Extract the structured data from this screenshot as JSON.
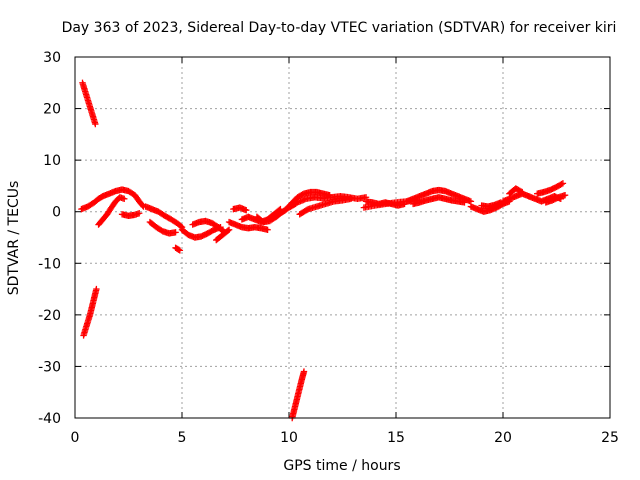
{
  "chart_data": {
    "type": "scatter",
    "title": "Day 363 of 2023, Sidereal Day-to-day VTEC variation (SDTVAR) for receiver kiri",
    "xlabel": "GPS time / hours",
    "ylabel": "SDTVAR / TECUs",
    "xlim": [
      0,
      25
    ],
    "ylim": [
      -40,
      30
    ],
    "xticks": [
      0,
      5,
      10,
      15,
      20,
      25
    ],
    "yticks": [
      -40,
      -30,
      -20,
      -10,
      0,
      10,
      20,
      30
    ],
    "grid": true,
    "marker": "+",
    "marker_color": "#ff0000",
    "series": [
      {
        "name": "SDTVAR",
        "segments": [
          {
            "x": [
              0.35,
              0.5,
              0.65,
              0.8,
              0.95
            ],
            "y": [
              25,
              23,
              21,
              19,
              17
            ]
          },
          {
            "x": [
              0.4,
              0.55,
              0.7,
              0.85,
              1.0
            ],
            "y": [
              -24,
              -22,
              -20,
              -17.5,
              -15
            ]
          },
          {
            "x": [
              10.15,
              10.3,
              10.45,
              10.6,
              10.7
            ],
            "y": [
              -40,
              -37.5,
              -35,
              -32.5,
              -31
            ]
          },
          {
            "x": [
              0.3,
              0.6,
              0.9,
              1.1,
              1.3,
              1.6,
              1.9,
              2.2,
              2.5,
              2.8,
              3.0,
              3.2
            ],
            "y": [
              0.5,
              1.0,
              1.8,
              2.5,
              3.0,
              3.5,
              4.0,
              4.3,
              4.0,
              3.2,
              2.0,
              1.0
            ]
          },
          {
            "x": [
              1.1,
              1.3,
              1.5,
              1.7,
              1.9,
              2.1,
              2.3
            ],
            "y": [
              -2.5,
              -1.5,
              -0.5,
              0.8,
              2.0,
              2.8,
              2.5
            ]
          },
          {
            "x": [
              2.2,
              2.5,
              2.8,
              3.0
            ],
            "y": [
              -0.5,
              -0.8,
              -0.6,
              -0.3
            ]
          },
          {
            "x": [
              3.3,
              3.6,
              3.9,
              4.2,
              4.5,
              4.8,
              5.0
            ],
            "y": [
              1.0,
              0.5,
              0.0,
              -0.8,
              -1.5,
              -2.3,
              -3.0
            ]
          },
          {
            "x": [
              3.5,
              3.8,
              4.1,
              4.4,
              4.7
            ],
            "y": [
              -2.0,
              -3.0,
              -3.8,
              -4.2,
              -4.0
            ]
          },
          {
            "x": [
              4.7,
              4.9
            ],
            "y": [
              -7.0,
              -7.5
            ]
          },
          {
            "x": [
              5.0,
              5.3,
              5.6,
              5.9,
              6.2,
              6.5,
              6.8
            ],
            "y": [
              -3.5,
              -4.5,
              -5.0,
              -4.8,
              -4.2,
              -3.5,
              -3.0
            ]
          },
          {
            "x": [
              5.5,
              5.8,
              6.1,
              6.4,
              6.7,
              7.0
            ],
            "y": [
              -2.5,
              -2.0,
              -1.8,
              -2.2,
              -3.0,
              -4.0
            ]
          },
          {
            "x": [
              6.6,
              6.9,
              7.2
            ],
            "y": [
              -5.5,
              -4.5,
              -3.5
            ]
          },
          {
            "x": [
              7.2,
              7.5,
              7.8,
              8.1,
              8.4,
              8.7,
              9.0
            ],
            "y": [
              -2.0,
              -2.5,
              -3.0,
              -3.2,
              -3.0,
              -3.2,
              -3.5
            ]
          },
          {
            "x": [
              7.4,
              7.7,
              8.0
            ],
            "y": [
              0.5,
              0.8,
              0.3
            ]
          },
          {
            "x": [
              7.8,
              8.1,
              8.4,
              8.7,
              9.0,
              9.3,
              9.6
            ],
            "y": [
              -1.5,
              -1.0,
              -1.5,
              -2.0,
              -1.5,
              -0.5,
              0.5
            ]
          },
          {
            "x": [
              8.5,
              8.8,
              9.1,
              9.4,
              9.7,
              10.0,
              10.3
            ],
            "y": [
              -1.0,
              -2.0,
              -1.8,
              -1.0,
              0.0,
              0.8,
              1.5
            ]
          },
          {
            "x": [
              9.5,
              9.8,
              10.1,
              10.4,
              10.7,
              11.0,
              11.3,
              11.6,
              11.9
            ],
            "y": [
              -0.5,
              0.2,
              1.5,
              2.8,
              3.5,
              3.8,
              3.8,
              3.5,
              3.2
            ]
          },
          {
            "x": [
              10.0,
              10.4,
              10.8,
              11.2,
              11.6,
              12.0,
              12.4,
              12.8,
              13.2,
              13.6
            ],
            "y": [
              1.0,
              1.8,
              2.5,
              2.8,
              2.6,
              2.8,
              3.0,
              2.8,
              2.5,
              2.8
            ]
          },
          {
            "x": [
              10.5,
              10.9,
              11.3,
              11.7,
              12.1,
              12.5,
              12.9
            ],
            "y": [
              -0.5,
              0.5,
              1.0,
              1.5,
              2.0,
              2.2,
              2.5
            ]
          },
          {
            "x": [
              13.6,
              13.9,
              14.2,
              14.5,
              14.8,
              15.1,
              15.4
            ],
            "y": [
              2.0,
              1.8,
              1.5,
              1.8,
              1.5,
              1.2,
              1.5
            ]
          },
          {
            "x": [
              13.5,
              14.0,
              14.5,
              15.0,
              15.5,
              16.0
            ],
            "y": [
              0.8,
              1.2,
              1.5,
              1.8,
              2.0,
              2.2
            ]
          },
          {
            "x": [
              15.5,
              15.8,
              16.1,
              16.4,
              16.7,
              17.0,
              17.3,
              17.6,
              17.9,
              18.2,
              18.5
            ],
            "y": [
              2.0,
              2.5,
              3.0,
              3.5,
              4.0,
              4.2,
              4.0,
              3.5,
              3.0,
              2.5,
              2.0
            ]
          },
          {
            "x": [
              15.8,
              16.1,
              16.4,
              16.7,
              17.0,
              17.3,
              17.6,
              17.9,
              18.2
            ],
            "y": [
              1.5,
              1.8,
              2.2,
              2.5,
              2.8,
              2.5,
              2.2,
              2.0,
              1.8
            ]
          },
          {
            "x": [
              18.5,
              18.8,
              19.1,
              19.4,
              19.7,
              20.0,
              20.3
            ],
            "y": [
              1.0,
              0.5,
              0.0,
              0.3,
              0.8,
              1.5,
              2.0
            ]
          },
          {
            "x": [
              19.0,
              19.3,
              19.6,
              19.9
            ],
            "y": [
              1.2,
              1.0,
              1.3,
              1.8
            ]
          },
          {
            "x": [
              20.0,
              20.3,
              20.6,
              20.9,
              21.2
            ],
            "y": [
              2.0,
              2.5,
              3.0,
              3.5,
              3.0
            ]
          },
          {
            "x": [
              20.3,
              20.6,
              20.9
            ],
            "y": [
              3.5,
              4.5,
              3.8
            ]
          },
          {
            "x": [
              21.2,
              21.5,
              21.8,
              22.1,
              22.4,
              22.7
            ],
            "y": [
              3.0,
              2.5,
              2.0,
              2.5,
              3.0,
              2.5
            ]
          },
          {
            "x": [
              21.6,
              21.9,
              22.2,
              22.5,
              22.8
            ],
            "y": [
              3.5,
              3.8,
              4.2,
              4.8,
              5.5
            ]
          },
          {
            "x": [
              22.0,
              22.3,
              22.6,
              22.9
            ],
            "y": [
              1.8,
              2.2,
              2.8,
              3.2
            ]
          }
        ]
      }
    ]
  }
}
